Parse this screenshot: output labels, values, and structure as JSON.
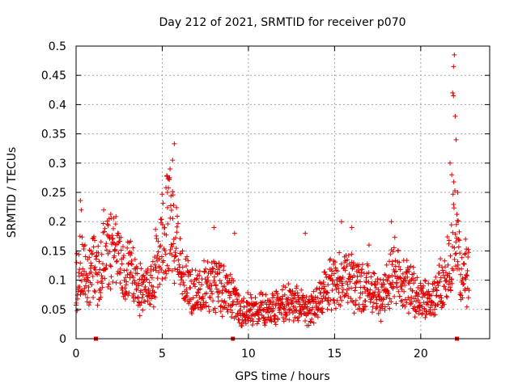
{
  "chart_data": {
    "type": "scatter",
    "title": "Day 212 of 2021, SRMTID for receiver p070",
    "xlabel": "GPS time / hours",
    "ylabel": "SRMTID / TECUs",
    "xlim": [
      0,
      24
    ],
    "ylim": [
      0,
      0.5
    ],
    "x_ticks": [
      0,
      5,
      10,
      15,
      20
    ],
    "y_ticks": [
      0,
      0.05,
      0.1,
      0.15,
      0.2,
      0.25,
      0.3,
      0.35,
      0.4,
      0.45,
      0.5
    ],
    "x_tick_labels": [
      "0",
      "5",
      "10",
      "15",
      "20"
    ],
    "y_tick_labels": [
      "0",
      "0.05",
      "0.1",
      "0.15",
      "0.2",
      "0.25",
      "0.3",
      "0.35",
      "0.4",
      "0.45",
      "0.5"
    ],
    "grid": true,
    "marker": "plus",
    "color": "#e00000",
    "gap_markers": [
      1.15,
      9.1,
      22.1
    ],
    "series": [
      {
        "name": "SRMTID",
        "profile": [
          [
            0.0,
            0.09
          ],
          [
            0.3,
            0.13
          ],
          [
            0.7,
            0.1
          ],
          [
            1.0,
            0.13
          ],
          [
            1.3,
            0.11
          ],
          [
            1.7,
            0.15
          ],
          [
            2.2,
            0.15
          ],
          [
            2.8,
            0.11
          ],
          [
            3.3,
            0.11
          ],
          [
            3.8,
            0.08
          ],
          [
            4.3,
            0.09
          ],
          [
            4.8,
            0.15
          ],
          [
            5.3,
            0.2
          ],
          [
            5.7,
            0.17
          ],
          [
            6.2,
            0.11
          ],
          [
            6.8,
            0.08
          ],
          [
            7.5,
            0.09
          ],
          [
            8.2,
            0.09
          ],
          [
            8.8,
            0.08
          ],
          [
            9.5,
            0.05
          ],
          [
            10.2,
            0.05
          ],
          [
            11.0,
            0.05
          ],
          [
            12.0,
            0.06
          ],
          [
            13.0,
            0.06
          ],
          [
            13.6,
            0.05
          ],
          [
            14.2,
            0.07
          ],
          [
            15.0,
            0.1
          ],
          [
            15.7,
            0.1
          ],
          [
            16.4,
            0.09
          ],
          [
            17.2,
            0.08
          ],
          [
            17.8,
            0.07
          ],
          [
            18.4,
            0.12
          ],
          [
            19.0,
            0.1
          ],
          [
            19.6,
            0.08
          ],
          [
            20.2,
            0.07
          ],
          [
            20.8,
            0.07
          ],
          [
            21.3,
            0.1
          ],
          [
            21.7,
            0.13
          ],
          [
            22.0,
            0.2
          ],
          [
            22.4,
            0.1
          ],
          [
            22.8,
            0.11
          ]
        ],
        "spikes": [
          [
            0.25,
            0.236
          ],
          [
            0.3,
            0.22
          ],
          [
            1.6,
            0.22
          ],
          [
            5.45,
            0.29
          ],
          [
            5.6,
            0.305
          ],
          [
            5.7,
            0.333
          ],
          [
            5.3,
            0.25
          ],
          [
            8.0,
            0.19
          ],
          [
            9.2,
            0.18
          ],
          [
            13.3,
            0.18
          ],
          [
            15.4,
            0.2
          ],
          [
            16.0,
            0.19
          ],
          [
            17.0,
            0.16
          ],
          [
            18.3,
            0.2
          ],
          [
            21.7,
            0.3
          ],
          [
            21.85,
            0.42
          ],
          [
            21.9,
            0.465
          ],
          [
            21.95,
            0.485
          ],
          [
            21.9,
            0.415
          ],
          [
            22.0,
            0.38
          ],
          [
            22.05,
            0.34
          ],
          [
            21.8,
            0.28
          ],
          [
            22.15,
            0.25
          ],
          [
            22.6,
            0.17
          ]
        ]
      }
    ]
  }
}
